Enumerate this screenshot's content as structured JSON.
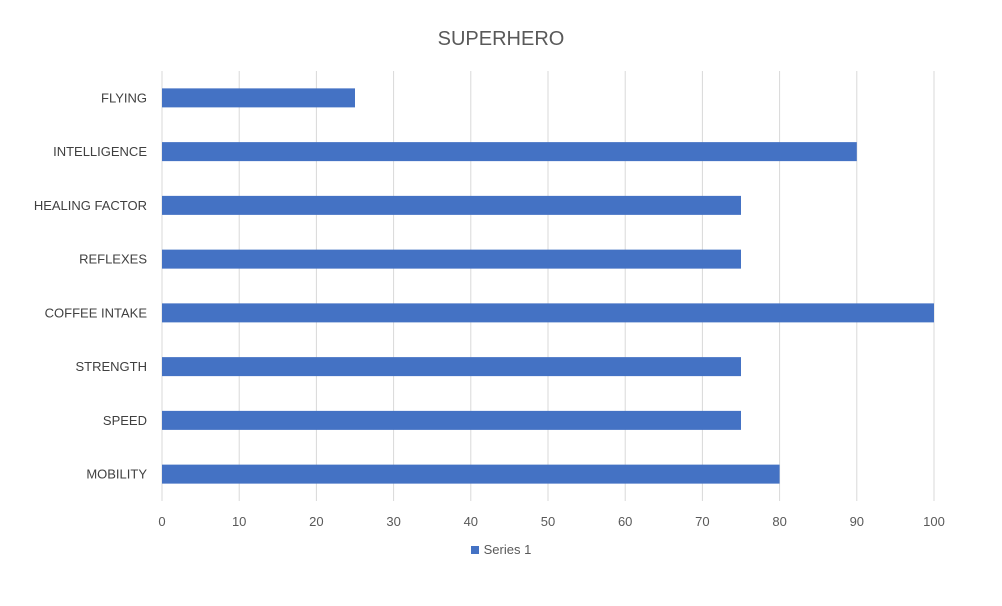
{
  "chart_data": {
    "type": "bar",
    "orientation": "horizontal",
    "title": "SUPERHERO",
    "categories": [
      "FLYING",
      "INTELLIGENCE",
      "HEALING FACTOR",
      "REFLEXES",
      "COFFEE INTAKE",
      "STRENGTH",
      "SPEED",
      "MOBILITY"
    ],
    "series": [
      {
        "name": "Series 1",
        "values": [
          25,
          90,
          75,
          75,
          100,
          75,
          75,
          80
        ],
        "color": "#4472C4"
      }
    ],
    "xlim": [
      0,
      100
    ],
    "xticks": [
      0,
      10,
      20,
      30,
      40,
      50,
      60,
      70,
      80,
      90,
      100
    ],
    "grid": true,
    "legend_position": "bottom"
  }
}
